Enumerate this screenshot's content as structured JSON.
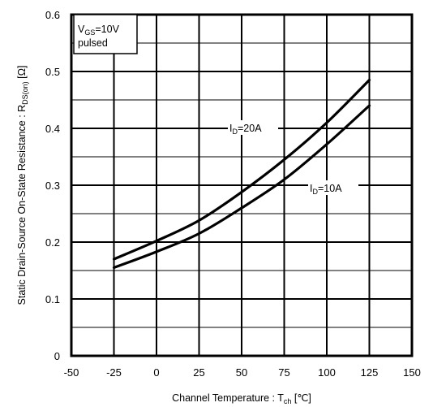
{
  "chart_data": {
    "type": "line",
    "title": "",
    "x": [
      -25,
      0,
      25,
      50,
      75,
      100,
      125
    ],
    "series": [
      {
        "name": "ID=20A",
        "values": [
          0.17,
          0.202,
          0.238,
          0.288,
          0.345,
          0.41,
          0.485
        ]
      },
      {
        "name": "ID=10A",
        "values": [
          0.155,
          0.183,
          0.215,
          0.26,
          0.31,
          0.372,
          0.44
        ]
      }
    ],
    "series_labels": [
      {
        "main": "I",
        "sub": "D",
        "tail": "=20A"
      },
      {
        "main": "I",
        "sub": "D",
        "tail": "=10A"
      }
    ],
    "xlim": [
      -50,
      150
    ],
    "ylim": [
      0,
      0.6
    ],
    "xticks": [
      "-50",
      "-25",
      "0",
      "25",
      "50",
      "75",
      "100",
      "125",
      "150"
    ],
    "yticks": [
      "0",
      "0.1",
      "0.2",
      "0.3",
      "0.4",
      "0.5",
      "0.6"
    ],
    "xlabel": {
      "main": "Channel Temperature :   T",
      "sub": "ch",
      "tail": " [℃]"
    },
    "ylabel": {
      "main": "Static Drain-Source On-State Resistance :  R",
      "sub": "DS(on)",
      "tail": " [Ω]"
    },
    "annotation": {
      "line1_main": "V",
      "line1_sub": "GS",
      "line1_tail": "=10V",
      "line2": "pulsed"
    },
    "grid": true,
    "minor_grid": true
  }
}
